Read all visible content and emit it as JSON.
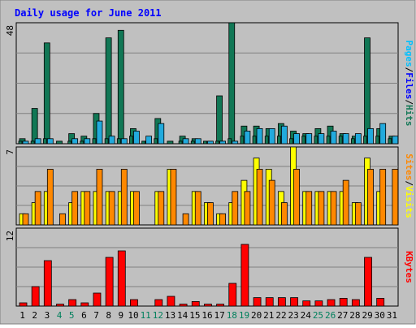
{
  "chart_data": [
    {
      "type": "bar",
      "title": "Daily usage for June 2011",
      "categories": [
        "1",
        "2",
        "3",
        "4",
        "5",
        "6",
        "7",
        "8",
        "9",
        "10",
        "11",
        "12",
        "13",
        "14",
        "15",
        "16",
        "17",
        "18",
        "19",
        "20",
        "21",
        "22",
        "23",
        "24",
        "25",
        "26",
        "27",
        "28",
        "29",
        "30",
        "31"
      ],
      "weekend_days": [
        "4",
        "5",
        "11",
        "12",
        "18",
        "19",
        "25",
        "26"
      ],
      "y_max_label": "48",
      "ylim": [
        0,
        48
      ],
      "side_label": [
        "Pages",
        "Files",
        "Hits"
      ],
      "series": [
        {
          "name": "Hits",
          "color": "#117755",
          "values": [
            2,
            14,
            40,
            1,
            4,
            3,
            12,
            42,
            45,
            6,
            1,
            10,
            1,
            3,
            2,
            1,
            19,
            48,
            7,
            7,
            6,
            8,
            5,
            4,
            6,
            7,
            4,
            3,
            42,
            6,
            3
          ]
        },
        {
          "name": "Files",
          "color": "#22aadd",
          "values": [
            1,
            2,
            2,
            0,
            2,
            2,
            9,
            3,
            2,
            5,
            3,
            8,
            0,
            2,
            2,
            1,
            1,
            1,
            5,
            6,
            6,
            7,
            4,
            4,
            4,
            5,
            4,
            4,
            6,
            8,
            3
          ]
        },
        {
          "name": "Pages",
          "color": "#117755",
          "values": [
            1,
            1,
            2,
            0,
            1,
            1,
            2,
            2,
            2,
            3,
            1,
            2,
            0,
            1,
            1,
            1,
            1,
            2,
            3,
            3,
            3,
            3,
            2,
            3,
            3,
            3,
            3,
            2,
            3,
            3,
            2
          ]
        }
      ]
    },
    {
      "type": "bar",
      "categories": [
        "1",
        "2",
        "3",
        "4",
        "5",
        "6",
        "7",
        "8",
        "9",
        "10",
        "11",
        "12",
        "13",
        "14",
        "15",
        "16",
        "17",
        "18",
        "19",
        "20",
        "21",
        "22",
        "23",
        "24",
        "25",
        "26",
        "27",
        "28",
        "29",
        "30",
        "31"
      ],
      "y_max_label": "7",
      "ylim": [
        0,
        7
      ],
      "side_label": [
        "Sites",
        "Visits"
      ],
      "series": [
        {
          "name": "Visits",
          "color": "#ffff00",
          "values": [
            1,
            2,
            3,
            0,
            2,
            3,
            3,
            3,
            3,
            3,
            0,
            3,
            5,
            0,
            3,
            2,
            1,
            2,
            4,
            6,
            5,
            3,
            7,
            3,
            3,
            3,
            3,
            2,
            6,
            3,
            0
          ]
        },
        {
          "name": "Sites",
          "color": "#ff8800",
          "values": [
            1,
            3,
            5,
            1,
            3,
            3,
            5,
            3,
            5,
            3,
            0,
            3,
            5,
            1,
            3,
            2,
            1,
            3,
            3,
            5,
            4,
            2,
            5,
            3,
            3,
            3,
            4,
            2,
            5,
            5,
            5
          ]
        }
      ]
    },
    {
      "type": "bar",
      "categories": [
        "1",
        "2",
        "3",
        "4",
        "5",
        "6",
        "7",
        "8",
        "9",
        "10",
        "11",
        "12",
        "13",
        "14",
        "15",
        "16",
        "17",
        "18",
        "19",
        "20",
        "21",
        "22",
        "23",
        "24",
        "25",
        "26",
        "27",
        "28",
        "29",
        "30",
        "31"
      ],
      "y_max_label": "12",
      "ylim": [
        0,
        12
      ],
      "side_label": [
        "KBytes"
      ],
      "series": [
        {
          "name": "KBytes",
          "color": "#ff0000",
          "values": [
            0.5,
            3.0,
            7.0,
            0.3,
            1.0,
            0.5,
            2.0,
            7.5,
            8.5,
            1.0,
            0.0,
            1.0,
            1.5,
            0.3,
            0.7,
            0.3,
            0.3,
            3.5,
            9.5,
            1.3,
            1.3,
            1.3,
            1.3,
            0.8,
            0.8,
            1.0,
            1.2,
            1.0,
            7.5,
            1.2,
            0.0
          ]
        }
      ]
    }
  ],
  "colors": {
    "background": "#c0c0c0",
    "grid": "#808080",
    "title": "#0000ff",
    "weekday_label": "#000000",
    "weekend_label": "#00805c",
    "label_pages": "#00c0ff",
    "label_files": "#0000ff",
    "label_hits": "#117755",
    "label_sites": "#ff8800",
    "label_visits": "#ffff00",
    "label_kbytes": "#ff0000",
    "separator": "#000000"
  }
}
